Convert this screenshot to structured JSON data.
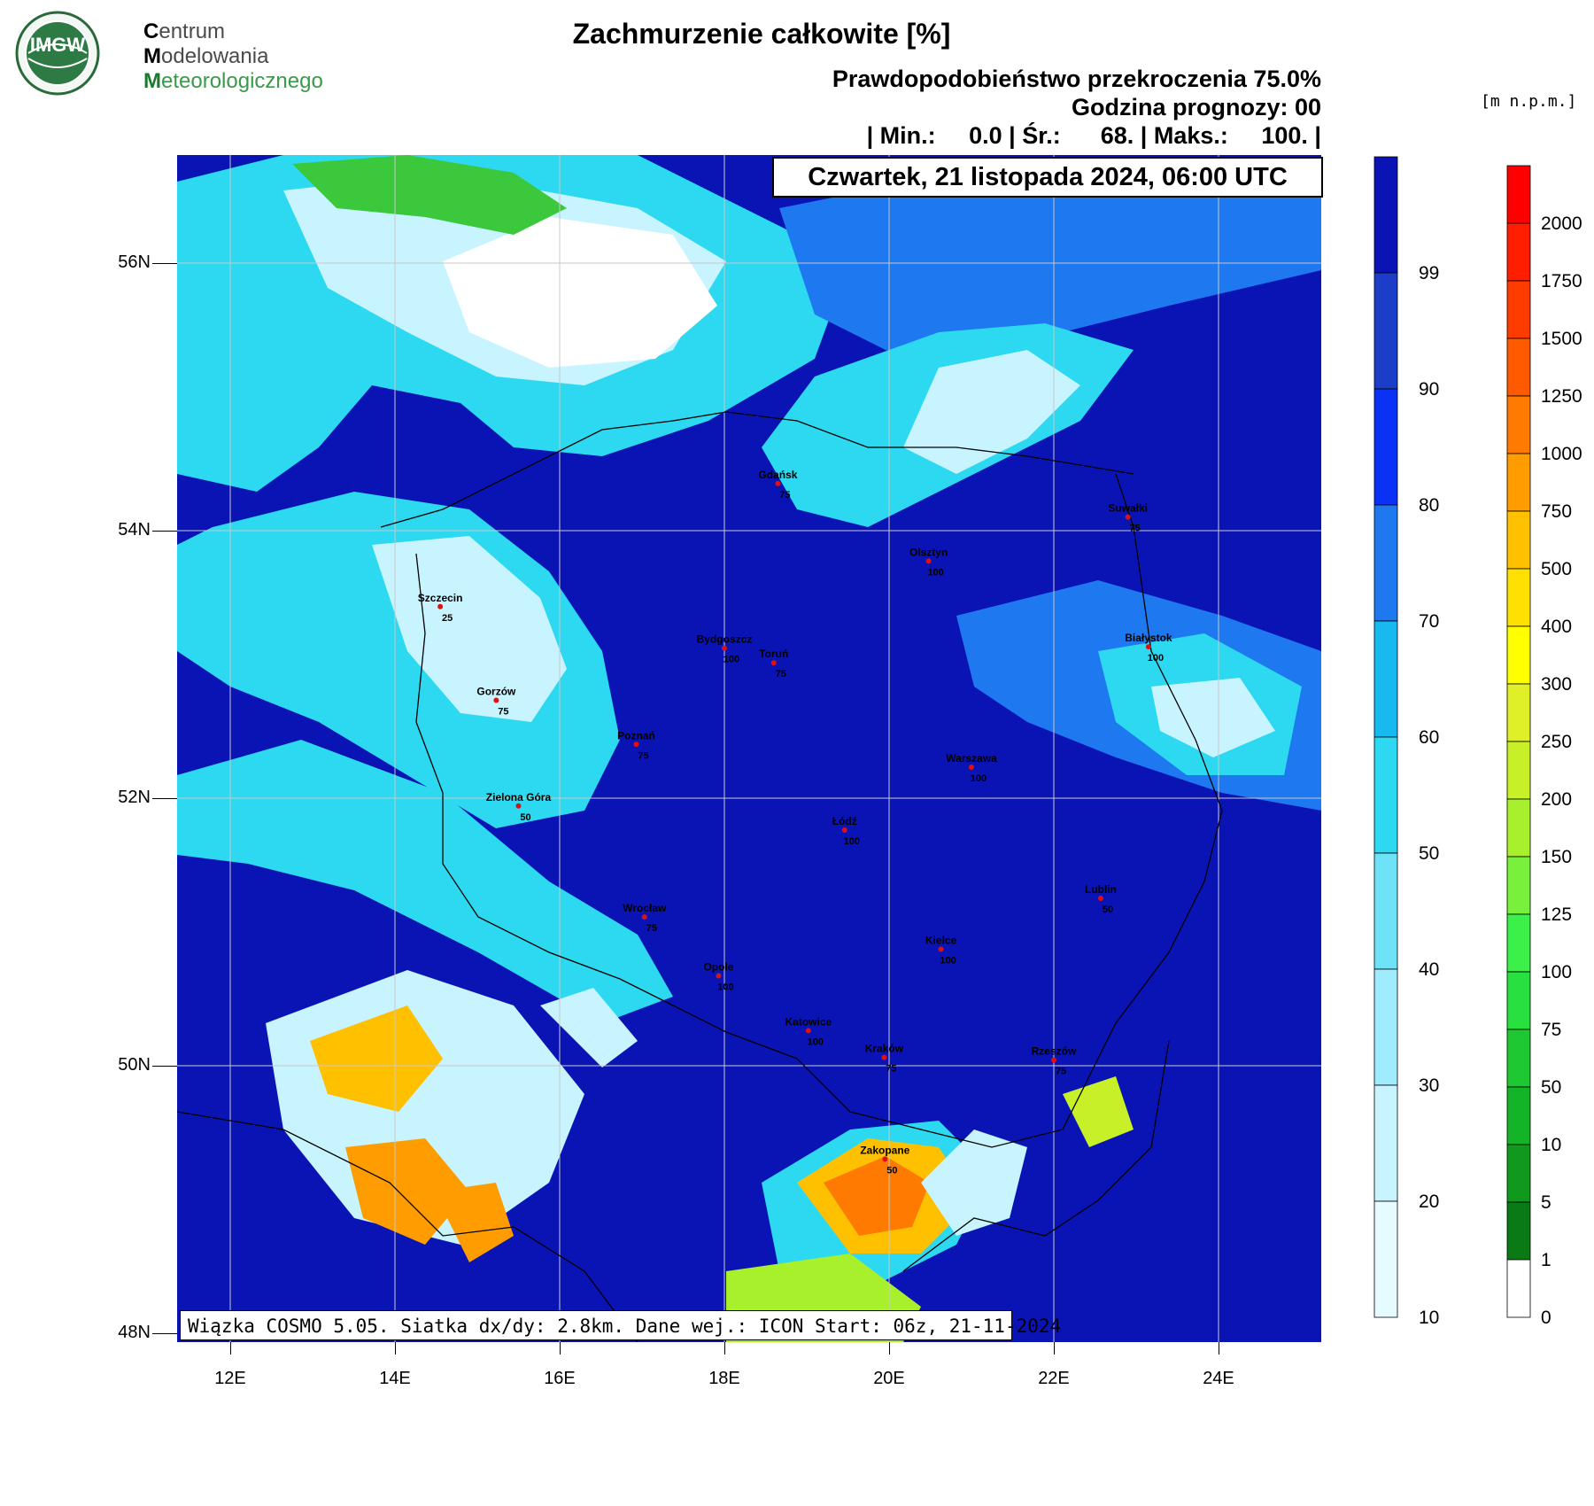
{
  "logo": {
    "badge": "IMGW",
    "lines": [
      {
        "cap": "C",
        "rest": "entrum"
      },
      {
        "cap": "M",
        "rest": "odelowania"
      },
      {
        "cap": "M",
        "rest": "eteorologicznego"
      }
    ]
  },
  "header": {
    "title": "Zachmurzenie całkowite [%]",
    "probability": "Prawdopodobieństwo przekroczenia 75.0%",
    "forecast_hour": "Godzina prognozy: 00",
    "stats": "| Min.:     0.0 | Śr.:      68. | Maks.:     100. |",
    "datetime": "Czwartek, 21 listopada 2024, 06:00 UTC",
    "units": "[m n.p.m.]"
  },
  "model_info": "Wiązka COSMO 5.05. Siatka dx/dy: 2.8km. Dane wej.: ICON Start: 06z, 21-11-2024",
  "axes": {
    "lon_labels": [
      "12E",
      "14E",
      "16E",
      "18E",
      "20E",
      "22E",
      "24E"
    ],
    "lat_labels": [
      "56N",
      "54N",
      "52N",
      "50N",
      "48N"
    ]
  },
  "cities": [
    {
      "name": "Gdańsk",
      "value": "75",
      "lon": 18.65,
      "lat": 54.35
    },
    {
      "name": "Suwałki",
      "value": "75",
      "lon": 22.9,
      "lat": 54.1
    },
    {
      "name": "Olsztyn",
      "value": "100",
      "lon": 20.48,
      "lat": 53.77
    },
    {
      "name": "Szczecin",
      "value": "25",
      "lon": 14.55,
      "lat": 53.43
    },
    {
      "name": "Bydgoszcz",
      "value": "100",
      "lon": 18.0,
      "lat": 53.12
    },
    {
      "name": "Toruń",
      "value": "75",
      "lon": 18.6,
      "lat": 53.01
    },
    {
      "name": "Białystok",
      "value": "100",
      "lon": 23.15,
      "lat": 53.13
    },
    {
      "name": "Gorzów",
      "value": "75",
      "lon": 15.23,
      "lat": 52.73
    },
    {
      "name": "Poznań",
      "value": "75",
      "lon": 16.93,
      "lat": 52.4
    },
    {
      "name": "Warszawa",
      "value": "100",
      "lon": 21.0,
      "lat": 52.23
    },
    {
      "name": "Zielona Góra",
      "value": "50",
      "lon": 15.5,
      "lat": 51.94
    },
    {
      "name": "Łódź",
      "value": "100",
      "lon": 19.46,
      "lat": 51.76
    },
    {
      "name": "Lublin",
      "value": "50",
      "lon": 22.57,
      "lat": 51.25
    },
    {
      "name": "Wrocław",
      "value": "75",
      "lon": 17.03,
      "lat": 51.11
    },
    {
      "name": "Kielce",
      "value": "100",
      "lon": 20.63,
      "lat": 50.87
    },
    {
      "name": "Opole",
      "value": "100",
      "lon": 17.93,
      "lat": 50.67
    },
    {
      "name": "Katowice",
      "value": "100",
      "lon": 19.02,
      "lat": 50.26
    },
    {
      "name": "Kraków",
      "value": "75",
      "lon": 19.94,
      "lat": 50.06
    },
    {
      "name": "Rzeszów",
      "value": "75",
      "lon": 22.0,
      "lat": 50.04
    },
    {
      "name": "Zakopane",
      "value": "50",
      "lon": 19.95,
      "lat": 49.3
    }
  ],
  "cloud_scale": {
    "labels": [
      "10",
      "20",
      "30",
      "40",
      "50",
      "60",
      "70",
      "80",
      "90",
      "99"
    ],
    "colors": [
      "#e6fbff",
      "#c8f4ff",
      "#a0ecff",
      "#6ee3f8",
      "#2cd9f0",
      "#18b8f0",
      "#1e78f0",
      "#0a32f5",
      "#1b3dc8",
      "#0a14b4"
    ]
  },
  "terrain_scale": {
    "labels": [
      "0",
      "1",
      "5",
      "10",
      "50",
      "75",
      "100",
      "125",
      "150",
      "200",
      "250",
      "300",
      "400",
      "500",
      "750",
      "1000",
      "1250",
      "1500",
      "1750",
      "2000"
    ],
    "colors": [
      "#ffffff",
      "#0a7a14",
      "#0f9a1e",
      "#14b428",
      "#1ec832",
      "#28e040",
      "#3cf04a",
      "#78f03c",
      "#a8f02c",
      "#c8f028",
      "#e0f028",
      "#ffff00",
      "#ffe000",
      "#ffc000",
      "#ff9c00",
      "#ff7a00",
      "#ff5a00",
      "#ff3c00",
      "#ff1e00",
      "#ff0000"
    ]
  },
  "colors": {
    "cloud_max": "#0a14b4",
    "cloud_high": "#1b3dc8",
    "cloud_mid": "#1e78f0",
    "cloud_low": "#2cd9f0",
    "cloud_thin": "#c8f4ff",
    "clear": "#ffffff",
    "terrain_green": "#3cc83c",
    "terrain_orange": "#ff9c00",
    "city_marker": "#e01010"
  }
}
